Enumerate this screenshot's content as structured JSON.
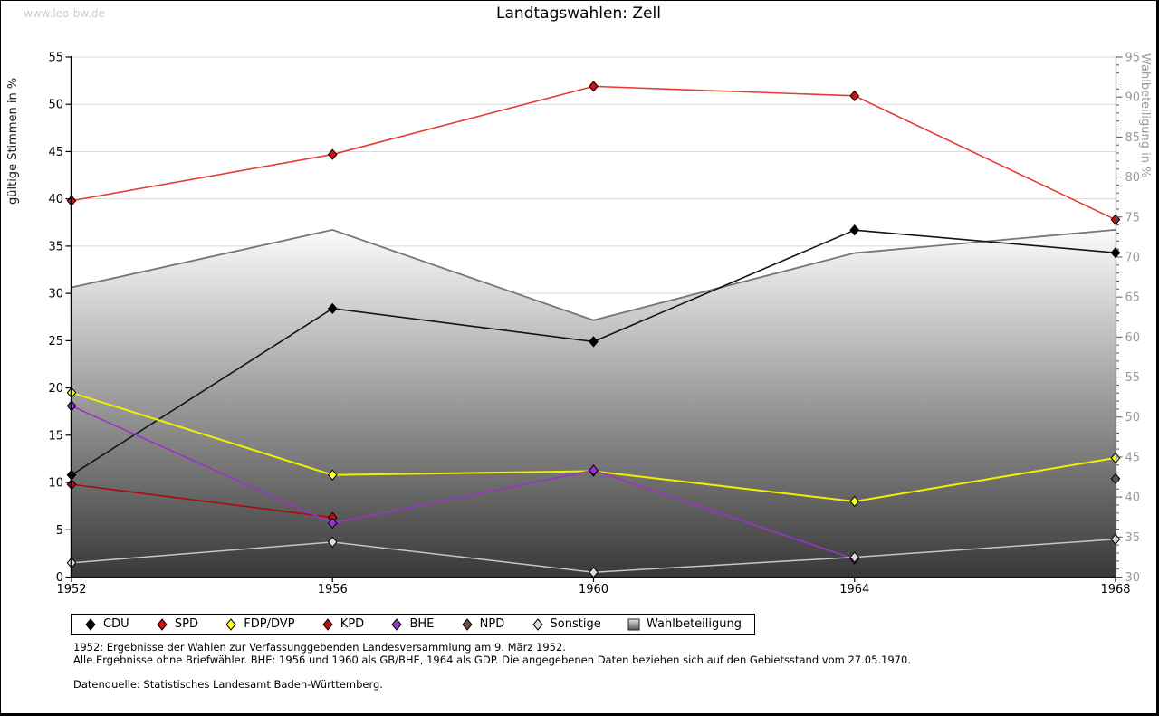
{
  "watermark": "www.leo-bw.de",
  "title": "Landtagswahlen: Zell",
  "footnotes": {
    "line1": "1952: Ergebnisse der Wahlen zur Verfassunggebenden Landesversammlung am 9. März 1952.",
    "line2": "Alle Ergebnisse ohne Briefwähler. BHE: 1956 und 1960 als GB/BHE, 1964 als GDP. Die angegebenen Daten beziehen sich auf den Gebietsstand vom 27.05.1970.",
    "source": "Datenquelle: Statistisches Landesamt Baden-Württemberg."
  },
  "chart_data": {
    "type": "line",
    "title": "Landtagswahlen: Zell",
    "categories": [
      "1952",
      "1956",
      "1960",
      "1964",
      "1968"
    ],
    "y_left": {
      "label": "gültige Stimmen in %",
      "min": 0,
      "max": 55,
      "tick_step": 5,
      "ticks": [
        0,
        5,
        10,
        15,
        20,
        25,
        30,
        35,
        40,
        45,
        50,
        55
      ]
    },
    "y_right": {
      "label": "Wahlbeteiligung in %",
      "min": 30,
      "max": 95,
      "tick_step": 5,
      "ticks": [
        30,
        35,
        40,
        45,
        50,
        55,
        60,
        65,
        70,
        75,
        80,
        85,
        90,
        95
      ]
    },
    "grid": true,
    "legend_position": "bottom",
    "series": [
      {
        "name": "CDU",
        "axis": "left",
        "color": "#141414",
        "marker": "#000000",
        "width": 1.6,
        "values": [
          10.8,
          28.4,
          24.9,
          36.7,
          34.3
        ]
      },
      {
        "name": "SPD",
        "axis": "left",
        "color": "#e63c32",
        "marker": "#d40f0f",
        "width": 1.6,
        "values": [
          39.8,
          44.7,
          51.9,
          50.9,
          37.8
        ]
      },
      {
        "name": "FDP/DVP",
        "axis": "left",
        "color": "#f0f000",
        "marker": "#ffff1a",
        "width": 2,
        "values": [
          19.5,
          10.8,
          11.2,
          8.0,
          12.6
        ]
      },
      {
        "name": "KPD",
        "axis": "left",
        "color": "#ad0a0a",
        "marker": "#bd1010",
        "width": 1.6,
        "values": [
          9.8,
          6.3,
          null,
          null,
          null
        ]
      },
      {
        "name": "BHE",
        "axis": "left",
        "color": "#9933cc",
        "marker": "#9933cc",
        "width": 1.6,
        "values": [
          18.1,
          5.7,
          11.3,
          1.9,
          null
        ]
      },
      {
        "name": "NPD",
        "axis": "left",
        "color": "#6d4c41",
        "marker": "#6d4c41",
        "width": 1.6,
        "values": [
          null,
          null,
          null,
          null,
          10.4
        ]
      },
      {
        "name": "Sonstige",
        "axis": "left",
        "color": "#c6c6c6",
        "marker": "#dcdcdc",
        "width": 1.5,
        "values": [
          1.5,
          3.7,
          0.5,
          2.1,
          4.0
        ]
      },
      {
        "name": "Wahlbeteiligung",
        "axis": "right",
        "type": "area",
        "color": "#767676",
        "gradient_top": "#fbfbfb",
        "gradient_bottom": "#383838",
        "values": [
          66.2,
          73.4,
          62.1,
          70.5,
          73.4
        ]
      }
    ]
  }
}
